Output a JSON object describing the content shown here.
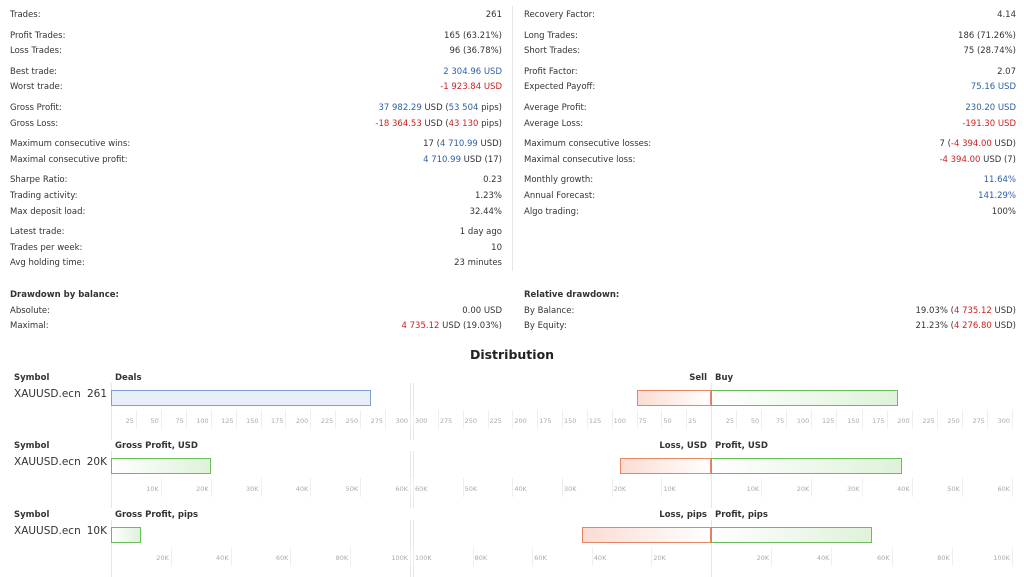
{
  "stats_left": [
    {
      "label": "Trades:",
      "value": "261"
    },
    {
      "gap": true
    },
    {
      "label": "Profit Trades:",
      "value": "165 (63.21%)"
    },
    {
      "label": "Loss Trades:",
      "value": "96 (36.78%)"
    },
    {
      "gap": true
    },
    {
      "label": "Best trade:",
      "value": "2 304.96 USD",
      "color": "blue"
    },
    {
      "label": "Worst trade:",
      "value": "-1 923.84 USD",
      "color": "red"
    },
    {
      "gap": true
    },
    {
      "label": "Gross Profit:",
      "parts": [
        {
          "t": "37 982.29",
          "c": "blue"
        },
        {
          "t": " USD ("
        },
        {
          "t": "53 504",
          "c": "blue"
        },
        {
          "t": " pips)"
        }
      ]
    },
    {
      "label": "Gross Loss:",
      "parts": [
        {
          "t": "-18 364.53",
          "c": "red"
        },
        {
          "t": " USD ("
        },
        {
          "t": "43 130",
          "c": "red"
        },
        {
          "t": " pips)"
        }
      ]
    },
    {
      "gap": true
    },
    {
      "label": "Maximum consecutive wins:",
      "parts": [
        {
          "t": "17 ("
        },
        {
          "t": "4 710.99",
          "c": "blue"
        },
        {
          "t": " USD)"
        }
      ]
    },
    {
      "label": "Maximal consecutive profit:",
      "parts": [
        {
          "t": "4 710.99",
          "c": "blue"
        },
        {
          "t": " USD (17)"
        }
      ]
    },
    {
      "gap": true
    },
    {
      "label": "Sharpe Ratio:",
      "value": "0.23"
    },
    {
      "label": "Trading activity:",
      "value": "1.23%"
    },
    {
      "label": "Max deposit load:",
      "value": "32.44%"
    },
    {
      "gap": true
    },
    {
      "label": "Latest trade:",
      "value": "1 day ago"
    },
    {
      "label": "Trades per week:",
      "value": "10"
    },
    {
      "label": "Avg holding time:",
      "value": "23 minutes"
    }
  ],
  "stats_right": [
    {
      "label": "Recovery Factor:",
      "value": "4.14"
    },
    {
      "gap": true
    },
    {
      "label": "Long Trades:",
      "value": "186 (71.26%)"
    },
    {
      "label": "Short Trades:",
      "value": "75 (28.74%)"
    },
    {
      "gap": true
    },
    {
      "label": "Profit Factor:",
      "value": "2.07"
    },
    {
      "label": "Expected Payoff:",
      "value": "75.16 USD",
      "color": "blue"
    },
    {
      "gap": true
    },
    {
      "label": "Average Profit:",
      "value": "230.20 USD",
      "color": "blue"
    },
    {
      "label": "Average Loss:",
      "value": "-191.30 USD",
      "color": "red"
    },
    {
      "gap": true
    },
    {
      "label": "Maximum consecutive losses:",
      "parts": [
        {
          "t": "7 ("
        },
        {
          "t": "-4 394.00",
          "c": "red"
        },
        {
          "t": " USD)"
        }
      ]
    },
    {
      "label": "Maximal consecutive loss:",
      "parts": [
        {
          "t": "-4 394.00",
          "c": "red"
        },
        {
          "t": " USD (7)"
        }
      ]
    },
    {
      "gap": true
    },
    {
      "label": "Monthly growth:",
      "value": "11.64%",
      "color": "blue"
    },
    {
      "label": "Annual Forecast:",
      "value": "141.29%",
      "color": "blue"
    },
    {
      "label": "Algo trading:",
      "value": "100%"
    }
  ],
  "drawdown": {
    "title": "Drawdown by balance:",
    "rows": [
      {
        "label": "Absolute:",
        "value": "0.00 USD"
      },
      {
        "label": "Maximal:",
        "parts": [
          {
            "t": "4 735.12",
            "c": "red"
          },
          {
            "t": " USD (19.03%)"
          }
        ]
      }
    ]
  },
  "relative_drawdown": {
    "title": "Relative drawdown:",
    "rows": [
      {
        "label": "By Balance:",
        "parts": [
          {
            "t": "19.03% ("
          },
          {
            "t": "4 735.12",
            "c": "red"
          },
          {
            "t": " USD)"
          }
        ]
      },
      {
        "label": "By Equity:",
        "parts": [
          {
            "t": "21.23% ("
          },
          {
            "t": "4 276.80",
            "c": "red"
          },
          {
            "t": " USD)"
          }
        ]
      }
    ]
  },
  "distribution": {
    "title": "Distribution",
    "sections": [
      {
        "symbol_header": "Symbol",
        "symbol": "XAUUSD.ecn",
        "count": "261",
        "left_header": "Deals",
        "right_header_left": "Sell",
        "right_header_right": "Buy",
        "left_bar_value": 261,
        "left_bar_color": "blue",
        "left_max": 300,
        "left_ticks": [
          "25",
          "50",
          "75",
          "100",
          "125",
          "150",
          "175",
          "200",
          "225",
          "250",
          "275",
          "300"
        ],
        "right_left_value": 75,
        "right_right_value": 186,
        "right_left_max": 300,
        "right_right_max": 300,
        "right_left_ticks": [
          "300",
          "275",
          "250",
          "225",
          "200",
          "175",
          "150",
          "125",
          "100",
          "75",
          "50",
          "25"
        ],
        "right_right_ticks": [
          "25",
          "50",
          "75",
          "100",
          "125",
          "150",
          "175",
          "200",
          "225",
          "250",
          "275",
          "300"
        ]
      },
      {
        "symbol_header": "Symbol",
        "symbol": "XAUUSD.ecn",
        "count": "20K",
        "left_header": "Gross Profit, USD",
        "right_header_left": "Loss, USD",
        "right_header_right": "Profit, USD",
        "left_bar_value": 20000,
        "left_bar_color": "green",
        "left_max": 60000,
        "left_ticks": [
          "10K",
          "20K",
          "30K",
          "40K",
          "50K",
          "60K"
        ],
        "right_left_value": 18364,
        "right_right_value": 37982,
        "right_left_max": 60000,
        "right_right_max": 60000,
        "right_left_ticks": [
          "60K",
          "50K",
          "40K",
          "30K",
          "20K",
          "10K"
        ],
        "right_right_ticks": [
          "10K",
          "20K",
          "30K",
          "40K",
          "50K",
          "60K"
        ]
      },
      {
        "symbol_header": "Symbol",
        "symbol": "XAUUSD.ecn",
        "count": "10K",
        "left_header": "Gross Profit, pips",
        "right_header_left": "Loss, pips",
        "right_header_right": "Profit, pips",
        "left_bar_value": 10000,
        "left_bar_color": "green",
        "left_max": 100000,
        "left_ticks": [
          "20K",
          "40K",
          "60K",
          "80K",
          "100K"
        ],
        "right_left_value": 43130,
        "right_right_value": 53504,
        "right_left_max": 100000,
        "right_right_max": 100000,
        "right_left_ticks": [
          "100K",
          "80K",
          "60K",
          "40K",
          "20K"
        ],
        "right_right_ticks": [
          "20K",
          "40K",
          "60K",
          "80K",
          "100K"
        ]
      }
    ]
  }
}
